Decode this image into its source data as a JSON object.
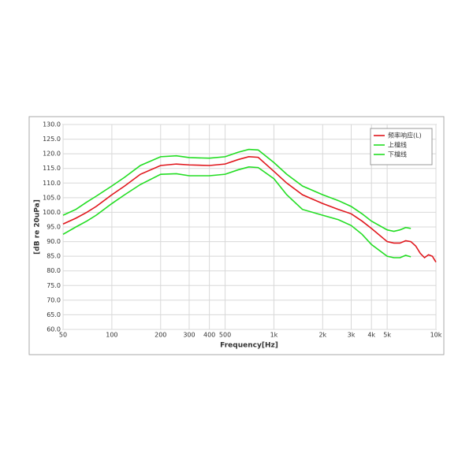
{
  "chart_data": {
    "type": "line",
    "xlabel": "Frequency[Hz]",
    "ylabel": "[dB re 20uPa]",
    "xscale": "log",
    "grid": true,
    "legend": "upper right",
    "xlim": [
      50,
      10000
    ],
    "xticks": [
      50,
      100,
      200,
      300,
      400,
      500,
      {
        "value": 1000,
        "label": "1k"
      },
      {
        "value": 2000,
        "label": "2k"
      },
      {
        "value": 3000,
        "label": "3k"
      },
      {
        "value": 4000,
        "label": "4k"
      },
      {
        "value": 5000,
        "label": "5k"
      },
      {
        "value": 10000,
        "label": "10k"
      }
    ],
    "ylim": [
      60,
      130
    ],
    "yticks": [
      {
        "value": 60,
        "label": "60.0"
      },
      {
        "value": 65,
        "label": "65.0"
      },
      {
        "value": 70,
        "label": "70.0"
      },
      {
        "value": 75,
        "label": "75.0"
      },
      {
        "value": 80,
        "label": "80.0"
      },
      {
        "value": 85,
        "label": "85.0"
      },
      {
        "value": 90,
        "label": "90.0"
      },
      {
        "value": 95,
        "label": "95.0"
      },
      {
        "value": 100,
        "label": "100.0"
      },
      {
        "value": 105,
        "label": "105.0"
      },
      {
        "value": 110,
        "label": "110.0"
      },
      {
        "value": 115,
        "label": "115.0"
      },
      {
        "value": 120,
        "label": "120.0"
      },
      {
        "value": 125,
        "label": "125.0"
      },
      {
        "value": 130,
        "label": "130.0"
      }
    ],
    "series": [
      {
        "name": "频率响应(L)",
        "color": "#e0161c",
        "x": [
          50,
          60,
          70,
          80,
          100,
          120,
          150,
          200,
          250,
          300,
          400,
          500,
          600,
          700,
          800,
          1000,
          1200,
          1500,
          2000,
          2500,
          3000,
          3500,
          4000,
          5000,
          5500,
          6000,
          6500,
          7000,
          7500,
          8000,
          8500,
          9000,
          9500,
          10000
        ],
        "values": [
          96,
          98,
          100,
          102,
          106,
          109,
          113,
          116,
          116.5,
          116.2,
          116,
          116.5,
          118,
          119,
          118.8,
          114,
          110,
          106,
          103,
          101,
          99.5,
          97,
          94.5,
          90,
          89.5,
          89.5,
          90.3,
          90,
          88.5,
          86,
          84.5,
          85.5,
          85,
          83
        ]
      },
      {
        "name": "上檔线",
        "color": "#22dd22",
        "x": [
          50,
          60,
          70,
          80,
          100,
          120,
          150,
          200,
          250,
          300,
          400,
          500,
          600,
          700,
          800,
          1000,
          1200,
          1500,
          2000,
          2500,
          3000,
          3500,
          4000,
          5000,
          5500,
          6000,
          6500,
          7000
        ],
        "values": [
          99,
          101,
          103.5,
          105.5,
          109,
          112,
          116,
          119,
          119.3,
          118.7,
          118.5,
          119,
          120.5,
          121.5,
          121.3,
          117,
          113,
          109,
          106,
          104,
          102,
          99.5,
          97,
          94,
          93.5,
          94,
          94.8,
          94.5
        ]
      },
      {
        "name": "下檔线",
        "color": "#22dd22",
        "x": [
          50,
          60,
          70,
          80,
          100,
          120,
          150,
          200,
          250,
          300,
          400,
          500,
          600,
          700,
          800,
          1000,
          1200,
          1500,
          2000,
          2500,
          3000,
          3500,
          4000,
          5000,
          5500,
          6000,
          6500,
          7000
        ],
        "values": [
          92.5,
          95,
          97,
          99,
          103,
          106,
          109.5,
          113,
          113.2,
          112.5,
          112.5,
          113,
          114.5,
          115.5,
          115.3,
          111.5,
          106,
          101,
          99,
          97.5,
          95.5,
          92.5,
          89,
          85,
          84.5,
          84.5,
          85.3,
          84.8
        ]
      }
    ]
  }
}
